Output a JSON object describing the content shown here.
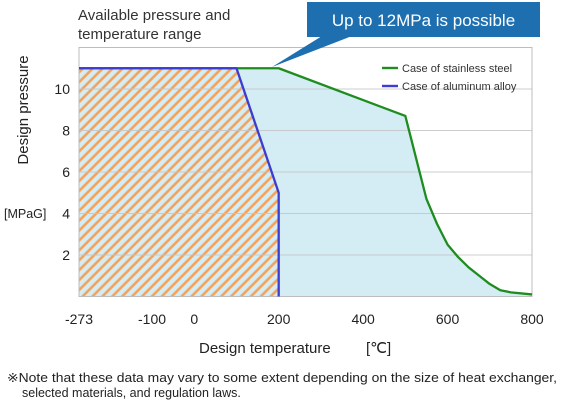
{
  "chart_data": {
    "type": "area",
    "title_lines": [
      "Available pressure and",
      "temperature range"
    ],
    "xlabel": "Design temperature",
    "xunit": "[℃]",
    "ylabel": "Design pressure",
    "yunit": "[MPaG]",
    "xlim": [
      -273,
      800
    ],
    "ylim": [
      0,
      12
    ],
    "xticks": [
      -273,
      -100,
      0,
      200,
      400,
      600,
      800
    ],
    "yticks": [
      2,
      4,
      6,
      8,
      10
    ],
    "grid": true,
    "legend_position": "top-right",
    "series": [
      {
        "name": "Case of stainless steel",
        "color": "#1e8c1e",
        "fill": "#d4ecf4",
        "x": [
          -273,
          200,
          500,
          550,
          575,
          600,
          625,
          650,
          675,
          700,
          725,
          750,
          800
        ],
        "y": [
          11,
          11,
          8.7,
          4.7,
          3.5,
          2.5,
          1.9,
          1.4,
          1.0,
          0.6,
          0.3,
          0.2,
          0.1
        ]
      },
      {
        "name": "Case of aluminum alloy",
        "color": "#3c3cd2",
        "hatch_color": "#f4a25a",
        "x": [
          -273,
          100,
          200,
          200
        ],
        "y": [
          11,
          11,
          5,
          0
        ]
      }
    ]
  },
  "callout": {
    "text": "Up to 12MPa is possible",
    "color": "#1d6fb0"
  },
  "footnote": {
    "line1": "※Note that these data may vary to some extent depending on the size of heat exchanger,",
    "line2": "selected materials, and regulation laws."
  }
}
